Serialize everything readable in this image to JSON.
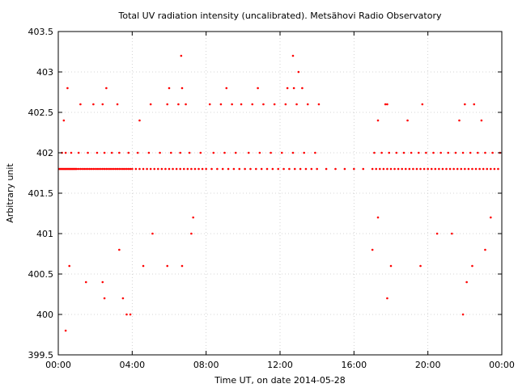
{
  "chart_data": {
    "type": "scatter",
    "title": "Total UV radiation intensity (uncalibrated). Metsähovi Radio Observatory",
    "xlabel": "Time UT, on date 2014-05-28",
    "ylabel": "Arbitrary unit",
    "xlim": [
      0,
      24
    ],
    "ylim": [
      399.5,
      403.5
    ],
    "x_ticks": [
      0,
      4,
      8,
      12,
      16,
      20,
      24
    ],
    "x_tick_labels": [
      "00:00",
      "04:00",
      "08:00",
      "12:00",
      "16:00",
      "20:00",
      "00:00"
    ],
    "y_ticks": [
      399.5,
      400,
      400.5,
      401,
      401.5,
      402,
      402.5,
      403,
      403.5
    ],
    "y_tick_labels": [
      "399.5",
      "400",
      "400.5",
      "401",
      "401.5",
      "402",
      "402.5",
      "403",
      "403.5"
    ],
    "grid": true,
    "series": [
      {
        "color": "#ff0000",
        "x": [
          0.05,
          0.1,
          0.15,
          0.2,
          0.25,
          0.3,
          0.35,
          0.4,
          0.45,
          0.5,
          0.55,
          0.6,
          0.65,
          0.7,
          0.75,
          0.8,
          0.85,
          0.9,
          0.95,
          1.0,
          1.1,
          1.2,
          1.3,
          1.4,
          1.5,
          1.6,
          1.7,
          1.8,
          1.9,
          2.0,
          2.1,
          2.2,
          2.3,
          2.4,
          2.5,
          2.6,
          2.7,
          2.8,
          2.9,
          3.0,
          3.1,
          3.2,
          3.3,
          3.4,
          3.5,
          3.6,
          3.7,
          3.8,
          3.9,
          4.0,
          4.2,
          4.4,
          4.6,
          4.8,
          5.0,
          5.2,
          5.4,
          5.6,
          5.8,
          6.0,
          6.2,
          6.4,
          6.6,
          6.8,
          7.0,
          7.2,
          7.4,
          7.6,
          7.8,
          8.0,
          8.3,
          8.6,
          8.9,
          9.2,
          9.5,
          9.8,
          10.1,
          10.4,
          10.7,
          11.0,
          11.3,
          11.6,
          11.9,
          12.2,
          12.5,
          12.8,
          13.1,
          13.4,
          13.7,
          14.0,
          14.5,
          15.0,
          15.5,
          16.0,
          16.5,
          17.0,
          17.2,
          17.4,
          17.6,
          17.8,
          18.0,
          18.2,
          18.4,
          18.6,
          18.8,
          19.0,
          19.2,
          19.4,
          19.6,
          19.8,
          20.0,
          20.2,
          20.4,
          20.6,
          20.8,
          21.0,
          21.2,
          21.4,
          21.6,
          21.8,
          22.0,
          22.2,
          22.4,
          22.6,
          22.8,
          23.0,
          23.2,
          23.4,
          23.6,
          23.8,
          0.2,
          0.4,
          0.7,
          1.1,
          1.6,
          2.1,
          2.5,
          2.9,
          3.3,
          3.8,
          4.3,
          4.9,
          5.5,
          6.1,
          6.6,
          7.1,
          7.7,
          8.4,
          9.0,
          9.6,
          10.3,
          10.9,
          11.5,
          12.1,
          12.7,
          13.3,
          13.9,
          17.1,
          17.5,
          17.9,
          18.3,
          18.7,
          19.1,
          19.5,
          19.9,
          20.3,
          20.7,
          21.1,
          21.5,
          21.9,
          22.3,
          22.7,
          23.1,
          23.5,
          23.9,
          0.3,
          1.2,
          2.4,
          3.2,
          5.9,
          6.5,
          6.9,
          8.2,
          8.8,
          9.4,
          9.9,
          10.5,
          11.1,
          11.7,
          12.3,
          12.9,
          13.5,
          14.1,
          17.7,
          19.7,
          22.5,
          0.5,
          1.9,
          2.6,
          4.4,
          5.0,
          6.0,
          6.7,
          9.1,
          10.8,
          12.4,
          12.75,
          13.2,
          17.3,
          18.9,
          21.7,
          22.9,
          0.4,
          0.6,
          1.5,
          2.4,
          2.5,
          3.3,
          3.5,
          3.7,
          3.9,
          4.6,
          5.1,
          5.9,
          6.7,
          7.2,
          7.3,
          17.0,
          17.3,
          17.8,
          18.0,
          19.6,
          20.5,
          21.3,
          21.9,
          22.1,
          22.4,
          23.1,
          23.4,
          6.65,
          12.7,
          13.0,
          17.8,
          22.0
        ],
        "y": [
          401.8,
          401.8,
          401.8,
          401.8,
          401.8,
          401.8,
          401.8,
          401.8,
          401.8,
          401.8,
          401.8,
          401.8,
          401.8,
          401.8,
          401.8,
          401.8,
          401.8,
          401.8,
          401.8,
          401.8,
          401.8,
          401.8,
          401.8,
          401.8,
          401.8,
          401.8,
          401.8,
          401.8,
          401.8,
          401.8,
          401.8,
          401.8,
          401.8,
          401.8,
          401.8,
          401.8,
          401.8,
          401.8,
          401.8,
          401.8,
          401.8,
          401.8,
          401.8,
          401.8,
          401.8,
          401.8,
          401.8,
          401.8,
          401.8,
          401.8,
          401.8,
          401.8,
          401.8,
          401.8,
          401.8,
          401.8,
          401.8,
          401.8,
          401.8,
          401.8,
          401.8,
          401.8,
          401.8,
          401.8,
          401.8,
          401.8,
          401.8,
          401.8,
          401.8,
          401.8,
          401.8,
          401.8,
          401.8,
          401.8,
          401.8,
          401.8,
          401.8,
          401.8,
          401.8,
          401.8,
          401.8,
          401.8,
          401.8,
          401.8,
          401.8,
          401.8,
          401.8,
          401.8,
          401.8,
          401.8,
          401.8,
          401.8,
          401.8,
          401.8,
          401.8,
          401.8,
          401.8,
          401.8,
          401.8,
          401.8,
          401.8,
          401.8,
          401.8,
          401.8,
          401.8,
          401.8,
          401.8,
          401.8,
          401.8,
          401.8,
          401.8,
          401.8,
          401.8,
          401.8,
          401.8,
          401.8,
          401.8,
          401.8,
          401.8,
          401.8,
          401.8,
          401.8,
          401.8,
          401.8,
          401.8,
          401.8,
          401.8,
          401.8,
          401.8,
          401.8,
          402.0,
          402.0,
          402.0,
          402.0,
          402.0,
          402.0,
          402.0,
          402.0,
          402.0,
          402.0,
          402.0,
          402.0,
          402.0,
          402.0,
          402.0,
          402.0,
          402.0,
          402.0,
          402.0,
          402.0,
          402.0,
          402.0,
          402.0,
          402.0,
          402.0,
          402.0,
          402.0,
          402.0,
          402.0,
          402.0,
          402.0,
          402.0,
          402.0,
          402.0,
          402.0,
          402.0,
          402.0,
          402.0,
          402.0,
          402.0,
          402.0,
          402.0,
          402.0,
          402.0,
          402.0,
          402.4,
          402.6,
          402.6,
          402.6,
          402.6,
          402.6,
          402.6,
          402.6,
          402.6,
          402.6,
          402.6,
          402.6,
          402.6,
          402.6,
          402.6,
          402.6,
          402.6,
          402.6,
          402.6,
          402.6,
          402.6,
          402.8,
          402.6,
          402.8,
          402.4,
          402.6,
          402.8,
          402.8,
          402.8,
          402.8,
          402.8,
          402.8,
          402.8,
          402.4,
          402.4,
          402.4,
          402.4,
          399.8,
          400.6,
          400.4,
          400.4,
          400.2,
          400.8,
          400.2,
          400.0,
          400.0,
          400.6,
          401.0,
          400.6,
          400.6,
          401.0,
          401.2,
          400.8,
          401.2,
          400.2,
          400.6,
          400.6,
          401.0,
          401.0,
          400.0,
          400.4,
          400.6,
          400.8,
          401.2,
          403.2,
          403.2,
          403.0,
          402.6,
          402.6
        ]
      }
    ]
  }
}
